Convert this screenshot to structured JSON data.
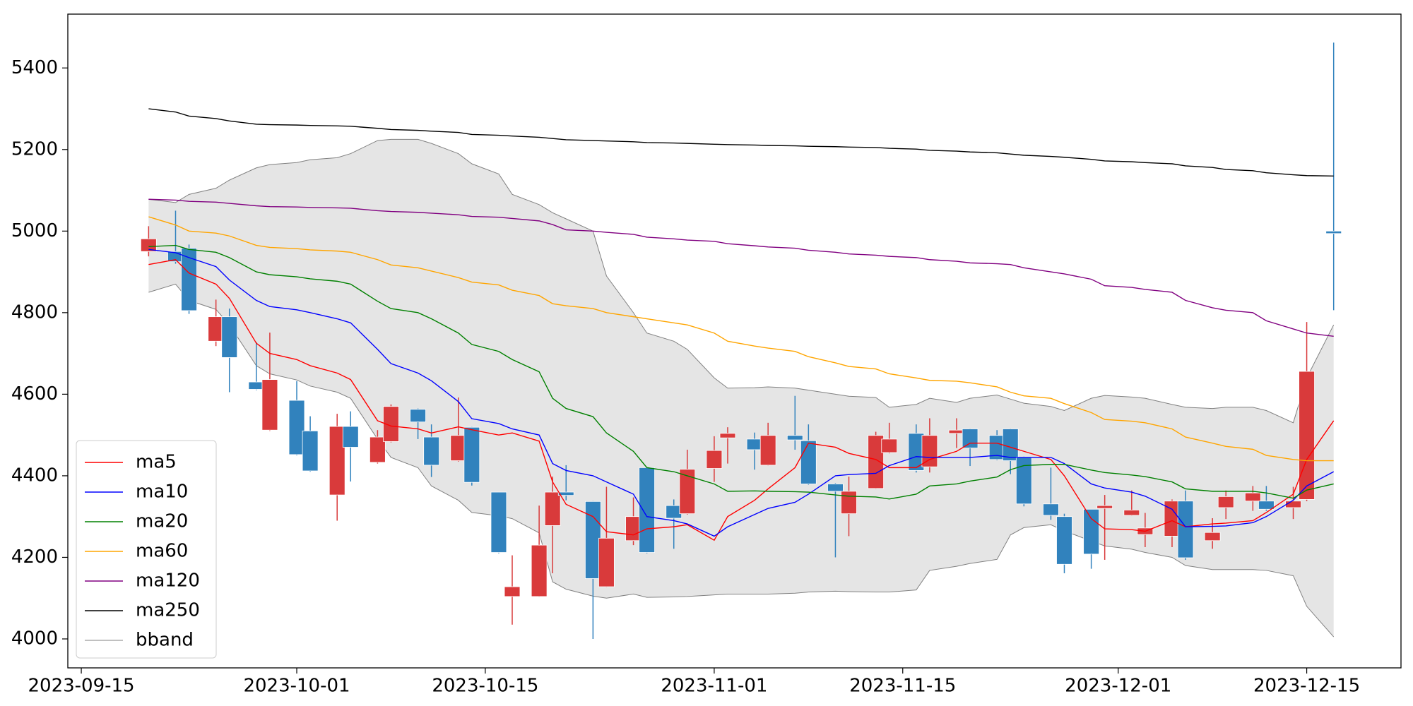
{
  "chart_data": {
    "type": "candlestick",
    "x": [
      "2023-09-20",
      "2023-09-22",
      "2023-09-23",
      "2023-09-25",
      "2023-09-26",
      "2023-09-28",
      "2023-09-29",
      "2023-10-01",
      "2023-10-02",
      "2023-10-04",
      "2023-10-05",
      "2023-10-07",
      "2023-10-08",
      "2023-10-10",
      "2023-10-11",
      "2023-10-13",
      "2023-10-14",
      "2023-10-16",
      "2023-10-17",
      "2023-10-19",
      "2023-10-20",
      "2023-10-21",
      "2023-10-23",
      "2023-10-24",
      "2023-10-26",
      "2023-10-27",
      "2023-10-29",
      "2023-10-30",
      "2023-11-01",
      "2023-11-02",
      "2023-11-04",
      "2023-11-05",
      "2023-11-07",
      "2023-11-08",
      "2023-11-10",
      "2023-11-11",
      "2023-11-13",
      "2023-11-14",
      "2023-11-16",
      "2023-11-17",
      "2023-11-19",
      "2023-11-20",
      "2023-11-22",
      "2023-11-23",
      "2023-11-24",
      "2023-11-26",
      "2023-11-27",
      "2023-11-29",
      "2023-11-30",
      "2023-12-02",
      "2023-12-03",
      "2023-12-05",
      "2023-12-06",
      "2023-12-08",
      "2023-12-09",
      "2023-12-11",
      "2023-12-12",
      "2023-12-14",
      "2023-12-15",
      "2023-12-17"
    ],
    "open": [
      4950,
      4950,
      4958,
      4730,
      4790,
      4630,
      4512,
      4585,
      4510,
      4353,
      4521,
      4433,
      4484,
      4563,
      4495,
      4437,
      4519,
      4360,
      4104,
      4104,
      4278,
      4360,
      4337,
      4128,
      4241,
      4420,
      4327,
      4307,
      4418,
      4493,
      4490,
      4426,
      4499,
      4486,
      4380,
      4307,
      4369,
      4457,
      4504,
      4422,
      4504,
      4515,
      4499,
      4515,
      4446,
      4331,
      4300,
      4318,
      4320,
      4303,
      4256,
      4252,
      4338,
      4241,
      4322,
      4338,
      4338,
      4322,
      4342,
      5000
    ],
    "high": [
      5012,
      5050,
      4967,
      4832,
      4810,
      4728,
      4751,
      4632,
      4546,
      4552,
      4558,
      4512,
      4575,
      4565,
      4526,
      4592,
      4520,
      4360,
      4205,
      4327,
      4398,
      4426,
      4338,
      4373,
      4347,
      4421,
      4342,
      4464,
      4497,
      4519,
      4506,
      4530,
      4596,
      4526,
      4382,
      4398,
      4508,
      4530,
      4526,
      4541,
      4541,
      4516,
      4512,
      4516,
      4447,
      4420,
      4307,
      4318,
      4353,
      4364,
      4309,
      4342,
      4364,
      4296,
      4364,
      4375,
      4375,
      4373,
      4777,
      5462
    ],
    "low": [
      4938,
      4920,
      4797,
      4718,
      4605,
      4610,
      4510,
      4450,
      4410,
      4290,
      4386,
      4430,
      4482,
      4490,
      4397,
      4435,
      4376,
      4210,
      4035,
      4103,
      4161,
      4340,
      4000,
      4127,
      4230,
      4210,
      4221,
      4305,
      4385,
      4430,
      4415,
      4425,
      4464,
      4378,
      4200,
      4252,
      4368,
      4455,
      4408,
      4408,
      4468,
      4424,
      4438,
      4404,
      4325,
      4292,
      4161,
      4172,
      4194,
      4302,
      4225,
      4225,
      4194,
      4221,
      4294,
      4314,
      4314,
      4294,
      4338,
      4806
    ],
    "close": [
      4981,
      4925,
      4805,
      4790,
      4690,
      4612,
      4636,
      4452,
      4412,
      4521,
      4470,
      4495,
      4570,
      4532,
      4426,
      4499,
      4384,
      4212,
      4128,
      4230,
      4360,
      4352,
      4148,
      4247,
      4300,
      4212,
      4296,
      4416,
      4462,
      4504,
      4464,
      4499,
      4488,
      4380,
      4362,
      4362,
      4499,
      4490,
      4413,
      4499,
      4512,
      4468,
      4440,
      4437,
      4331,
      4303,
      4183,
      4208,
      4327,
      4316,
      4272,
      4338,
      4199,
      4261,
      4349,
      4358,
      4318,
      4338,
      4656,
      4994
    ],
    "up_color": "#d93a3b",
    "down_color": "#3182bd",
    "series": [
      {
        "name": "ma5",
        "color": "#ff0000",
        "values": [
          4918,
          4930,
          4897,
          4870,
          4835,
          4725,
          4700,
          4685,
          4670,
          4652,
          4636,
          4535,
          4522,
          4515,
          4505,
          4520,
          4513,
          4500,
          4505,
          4485,
          4385,
          4330,
          4300,
          4263,
          4255,
          4270,
          4275,
          4280,
          4242,
          4300,
          4340,
          4368,
          4420,
          4480,
          4470,
          4455,
          4440,
          4420,
          4420,
          4440,
          4460,
          4480,
          4480,
          4470,
          4460,
          4440,
          4400,
          4295,
          4270,
          4268,
          4264,
          4290,
          4275,
          4282,
          4284,
          4290,
          4310,
          4355,
          4440,
          4535
        ]
      },
      {
        "name": "ma10",
        "color": "#0000ff",
        "values": [
          4955,
          4947,
          4935,
          4913,
          4880,
          4830,
          4815,
          4807,
          4800,
          4785,
          4775,
          4710,
          4675,
          4652,
          4633,
          4582,
          4540,
          4528,
          4515,
          4500,
          4430,
          4413,
          4400,
          4385,
          4355,
          4300,
          4290,
          4282,
          4252,
          4275,
          4305,
          4320,
          4335,
          4355,
          4400,
          4403,
          4406,
          4425,
          4447,
          4445,
          4445,
          4445,
          4450,
          4445,
          4445,
          4445,
          4430,
          4380,
          4370,
          4360,
          4350,
          4318,
          4275,
          4276,
          4277,
          4285,
          4300,
          4340,
          4375,
          4410
        ]
      },
      {
        "name": "ma20",
        "color": "#008000",
        "values": [
          4962,
          4965,
          4955,
          4948,
          4935,
          4900,
          4893,
          4888,
          4883,
          4877,
          4870,
          4828,
          4810,
          4800,
          4785,
          4750,
          4722,
          4705,
          4685,
          4655,
          4590,
          4565,
          4545,
          4505,
          4460,
          4420,
          4410,
          4400,
          4380,
          4362,
          4363,
          4362,
          4361,
          4360,
          4353,
          4350,
          4348,
          4343,
          4355,
          4375,
          4380,
          4387,
          4397,
          4415,
          4425,
          4428,
          4428,
          4414,
          4408,
          4402,
          4398,
          4385,
          4368,
          4362,
          4362,
          4362,
          4358,
          4345,
          4365,
          4380
        ]
      },
      {
        "name": "ma60",
        "color": "#ffa500",
        "values": [
          5035,
          5015,
          5000,
          4995,
          4988,
          4965,
          4960,
          4957,
          4954,
          4951,
          4948,
          4930,
          4917,
          4910,
          4902,
          4886,
          4875,
          4868,
          4855,
          4842,
          4822,
          4817,
          4810,
          4800,
          4790,
          4785,
          4775,
          4770,
          4750,
          4730,
          4718,
          4713,
          4705,
          4692,
          4677,
          4668,
          4662,
          4650,
          4640,
          4634,
          4632,
          4628,
          4618,
          4605,
          4596,
          4590,
          4577,
          4555,
          4538,
          4534,
          4530,
          4515,
          4495,
          4480,
          4472,
          4465,
          4450,
          4440,
          4437,
          4437
        ]
      },
      {
        "name": "ma120",
        "color": "#800080",
        "values": [
          5078,
          5076,
          5073,
          5071,
          5068,
          5062,
          5060,
          5059,
          5058,
          5057,
          5056,
          5050,
          5048,
          5046,
          5044,
          5040,
          5036,
          5034,
          5031,
          5025,
          5016,
          5003,
          5000,
          4997,
          4992,
          4985,
          4981,
          4978,
          4975,
          4969,
          4964,
          4961,
          4958,
          4953,
          4948,
          4944,
          4941,
          4938,
          4935,
          4930,
          4926,
          4922,
          4920,
          4918,
          4910,
          4900,
          4895,
          4882,
          4866,
          4862,
          4857,
          4850,
          4830,
          4812,
          4806,
          4800,
          4780,
          4760,
          4750,
          4742
        ]
      },
      {
        "name": "ma250",
        "color": "#000000",
        "values": [
          5300,
          5292,
          5282,
          5276,
          5270,
          5262,
          5261,
          5260,
          5259,
          5258,
          5257,
          5252,
          5249,
          5247,
          5245,
          5242,
          5237,
          5235,
          5233,
          5230,
          5227,
          5224,
          5222,
          5221,
          5219,
          5217,
          5216,
          5215,
          5213,
          5212,
          5211,
          5210,
          5209,
          5208,
          5207,
          5206,
          5205,
          5203,
          5201,
          5198,
          5196,
          5194,
          5192,
          5189,
          5186,
          5183,
          5181,
          5176,
          5172,
          5170,
          5168,
          5165,
          5160,
          5156,
          5151,
          5148,
          5143,
          5138,
          5136,
          5135
        ]
      },
      {
        "name": "bband",
        "color": "#808080",
        "fill": "#e5e5e5",
        "upper": [
          5078,
          5070,
          5090,
          5105,
          5125,
          5155,
          5163,
          5168,
          5175,
          5180,
          5190,
          5222,
          5225,
          5225,
          5215,
          5190,
          5165,
          5140,
          5090,
          5065,
          5045,
          5030,
          5000,
          4890,
          4800,
          4750,
          4730,
          4710,
          4640,
          4615,
          4616,
          4618,
          4615,
          4610,
          4600,
          4595,
          4592,
          4568,
          4575,
          4590,
          4580,
          4590,
          4598,
          4588,
          4578,
          4570,
          4560,
          4590,
          4597,
          4593,
          4590,
          4575,
          4568,
          4565,
          4568,
          4568,
          4560,
          4530,
          4640,
          4770
        ],
        "lower": [
          4850,
          4870,
          4830,
          4808,
          4770,
          4670,
          4650,
          4635,
          4620,
          4605,
          4590,
          4490,
          4445,
          4420,
          4375,
          4340,
          4310,
          4302,
          4295,
          4260,
          4140,
          4122,
          4105,
          4100,
          4110,
          4102,
          4103,
          4104,
          4108,
          4110,
          4110,
          4110,
          4112,
          4115,
          4117,
          4116,
          4115,
          4115,
          4120,
          4168,
          4178,
          4185,
          4195,
          4255,
          4273,
          4280,
          4265,
          4240,
          4228,
          4220,
          4212,
          4200,
          4180,
          4170,
          4170,
          4170,
          4168,
          4155,
          4080,
          4005
        ]
      }
    ],
    "xlim": [
      "2023-09-14",
      "2023-12-22"
    ],
    "xticks": [
      "2023-09-15",
      "2023-10-01",
      "2023-10-15",
      "2023-11-01",
      "2023-11-15",
      "2023-12-01",
      "2023-12-15"
    ],
    "ylim": [
      3929,
      5532
    ],
    "yticks": [
      4000,
      4200,
      4400,
      4600,
      4800,
      5000,
      5200,
      5400
    ],
    "legend": "lower left"
  }
}
